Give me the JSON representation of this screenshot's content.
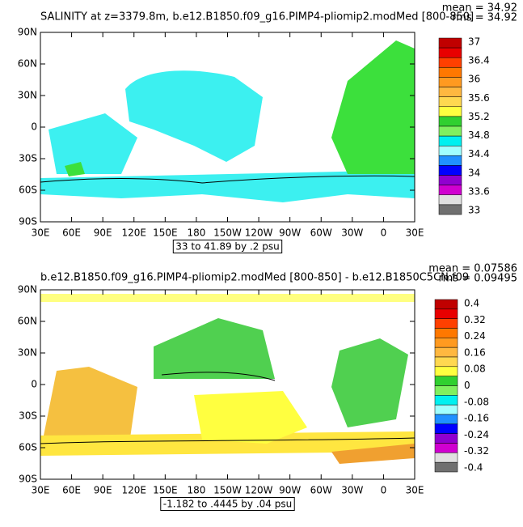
{
  "panels": [
    {
      "title": "SALINITY at z=3379.8m, b.e12.B1850.f09_g16.PIMP4-pliomip2.modMed [800-850]",
      "mean": "mean = 34.92",
      "rms": "rms = 34.92",
      "colorbar_labels": [
        "37",
        "36.4",
        "36",
        "35.6",
        "35.2",
        "34.8",
        "34.4",
        "34",
        "33.6",
        "33"
      ],
      "info": "33 to 41.89 by .2 psu"
    },
    {
      "title": "b.e12.B1850.f09_g16.PIMP4-pliomip2.modMed [800-850] - b.e12.B1850C5CN.f09",
      "mean": "mean = 0.07586",
      "rms": "rms = 0.09495",
      "colorbar_labels": [
        "0.4",
        "0.32",
        "0.24",
        "0.16",
        "0.08",
        "0",
        "-0.08",
        "-0.16",
        "-0.24",
        "-0.32",
        "-0.4"
      ],
      "info": "-1.182 to .4445 by .04 psu"
    }
  ],
  "x_labels": [
    "30E",
    "60E",
    "90E",
    "120E",
    "150E",
    "180",
    "150W",
    "120W",
    "90W",
    "60W",
    "30W",
    "0",
    "30E"
  ],
  "y_labels": [
    "90N",
    "60N",
    "30N",
    "0",
    "30S",
    "60S",
    "90S"
  ],
  "colorbar_colors": [
    "#c00000",
    "#e80000",
    "#ff4000",
    "#ff7800",
    "#ff9a20",
    "#ffb840",
    "#ffd850",
    "#ffff40",
    "#30d030",
    "#80f060",
    "#00f0f0",
    "#a0ffff",
    "#2090ff",
    "#0000ff",
    "#9000d0",
    "#d000d0",
    "#e0e0e0",
    "#707070"
  ]
}
